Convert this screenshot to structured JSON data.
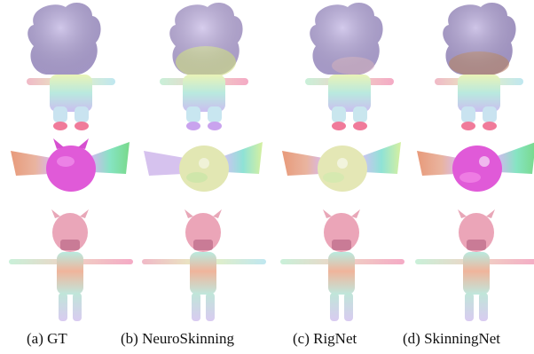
{
  "columns": [
    {
      "id": "gt",
      "caption": "(a) GT"
    },
    {
      "id": "neuro",
      "caption": "(b) NeuroSkinning"
    },
    {
      "id": "rig",
      "caption": "(c) RigNet"
    },
    {
      "id": "skin",
      "caption": "(d) SkinningNet"
    }
  ],
  "rows": [
    {
      "id": "hairy-character"
    },
    {
      "id": "winged-creature"
    },
    {
      "id": "horned-character"
    }
  ],
  "palette": {
    "hair_gt": "#b7a9de",
    "hair_neuro_tint": "#dfe8a8",
    "hair_skin_tint": "#c89a8a",
    "face_bat_gt": "#e05ad8",
    "face_bat_pred": "#e4e7b5",
    "wing_left": "#e8a98a",
    "wing_right": "#7fe0b0",
    "horn_head": "#e8a7b8",
    "body_pastel": "#bfe6d8",
    "limb_pastel": "#d7d0f0"
  }
}
